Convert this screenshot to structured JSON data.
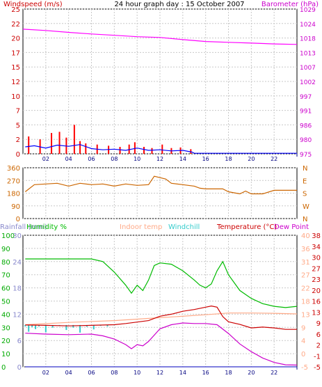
{
  "chart_data": [
    {
      "type": "line",
      "title": "24 hour graph day : 15 October 2007",
      "left_axis_label": "Windspeed (m/s)",
      "right_axis_label": "Barometer (hPa)",
      "x_ticks": [
        "02",
        "04",
        "06",
        "08",
        "10",
        "12",
        "14",
        "16",
        "18",
        "20",
        "22"
      ],
      "x_range": [
        0,
        24
      ],
      "ylim_left": [
        0,
        25
      ],
      "yticks_left": [
        0,
        2,
        5,
        7,
        10,
        12,
        15,
        17,
        20,
        22,
        25
      ],
      "yticks_right": [
        "975",
        "980",
        "986",
        "991",
        "997",
        "1002",
        "1007",
        "1013",
        "1018",
        "1024",
        "1029"
      ],
      "colors": {
        "wind_gust": "#ff0000",
        "wind_avg": "#0000ff",
        "barometer": "#ff00ff",
        "left_labels": "#cc0000",
        "right_labels": "#cc00cc"
      },
      "series": [
        {
          "name": "Barometer",
          "axis": "right",
          "x": [
            0,
            2,
            4,
            6,
            8,
            10,
            12,
            14,
            16,
            18,
            20,
            22,
            24
          ],
          "values": [
            1021.5,
            1021.0,
            1020.3,
            1019.7,
            1019.2,
            1018.7,
            1018.4,
            1017.6,
            1016.9,
            1016.6,
            1016.3,
            1016.0,
            1015.8
          ]
        },
        {
          "name": "Wind avg",
          "axis": "left",
          "x": [
            0.2,
            1,
            2,
            3,
            4,
            5,
            6,
            7,
            8,
            9,
            10,
            11,
            12,
            13,
            14,
            14.8,
            15,
            16,
            18,
            20,
            22,
            24
          ],
          "values": [
            1.2,
            1.4,
            1.0,
            1.5,
            1.3,
            1.6,
            0.9,
            0.7,
            0.8,
            0.6,
            1.0,
            0.6,
            0.7,
            0.5,
            0.6,
            0.3,
            0.1,
            0.1,
            0.1,
            0.1,
            0.1,
            0.1
          ]
        },
        {
          "name": "Wind gust",
          "axis": "left",
          "x": [
            0.5,
            1.5,
            2.5,
            3.2,
            3.8,
            4.5,
            5.0,
            5.5,
            6.5,
            7.5,
            8.5,
            9.3,
            9.8,
            10.6,
            11.3,
            12.2,
            13.0,
            13.8,
            14.7
          ],
          "values": [
            3.0,
            2.5,
            3.6,
            3.8,
            2.8,
            5.0,
            2.2,
            1.8,
            1.6,
            1.4,
            1.2,
            1.6,
            2.0,
            1.2,
            1.0,
            1.6,
            1.0,
            1.1,
            0.8
          ]
        }
      ]
    },
    {
      "type": "line",
      "left_axis_ticks": [
        "0",
        "90",
        "180",
        "270",
        "360"
      ],
      "right_axis_ticks": [
        "N",
        "W",
        "S",
        "E",
        "N"
      ],
      "ylim": [
        0,
        360
      ],
      "colors": {
        "direction": "#cc6600",
        "left_labels": "#cc6600",
        "right_labels": "#cc6600"
      },
      "series": [
        {
          "name": "Wind direction",
          "x": [
            0.2,
            1,
            2,
            3,
            4,
            5,
            6,
            7,
            8,
            9,
            10,
            11,
            11.5,
            12,
            12.5,
            13,
            14,
            15,
            15.5,
            16,
            17,
            17.5,
            18,
            19,
            19.5,
            20,
            21,
            22,
            23,
            24
          ],
          "values": [
            190,
            240,
            245,
            250,
            230,
            250,
            240,
            245,
            230,
            245,
            235,
            240,
            300,
            290,
            280,
            250,
            240,
            230,
            215,
            210,
            210,
            210,
            190,
            175,
            195,
            175,
            175,
            200,
            200,
            200
          ]
        }
      ]
    },
    {
      "type": "line",
      "legend": [
        "Rainfall (mm)",
        "Humidity %",
        "Indoor temp",
        "Windchill",
        "Temperature (°C)",
        "Dew Point"
      ],
      "legend_colors": [
        "#8888cc",
        "#00bb00",
        "#ffaa88",
        "#33cccc",
        "#cc0000",
        "#cc00cc"
      ],
      "rain_ticks": [
        "0",
        "6",
        "12",
        "18",
        "24",
        "30"
      ],
      "humidity_ticks": [
        "0",
        "10",
        "20",
        "30",
        "40",
        "50",
        "60",
        "70",
        "80",
        "90",
        "100"
      ],
      "indoor_ticks": [
        "-5",
        "0",
        "4",
        "9",
        "13",
        "18",
        "22",
        "27",
        "31",
        "36",
        "40"
      ],
      "temp_ticks": [
        "-5",
        "-1",
        "2",
        "6",
        "9",
        "13",
        "16",
        "20",
        "23",
        "27",
        "30",
        "34",
        "38"
      ],
      "temp_range": [
        -5,
        40
      ],
      "series": [
        {
          "name": "Humidity %",
          "axis": "humidity",
          "x": [
            0.2,
            2,
            4,
            6,
            7,
            8,
            9,
            9.5,
            10,
            10.5,
            11,
            11.5,
            12,
            13,
            14,
            15,
            15.5,
            16,
            16.5,
            17,
            17.5,
            18,
            19,
            20,
            21,
            22,
            23,
            24
          ],
          "values": [
            82,
            82,
            82,
            82,
            80,
            72,
            62,
            56,
            62,
            58,
            66,
            77,
            79,
            78,
            73,
            66,
            62,
            60,
            63,
            73,
            80,
            70,
            58,
            52,
            48,
            46,
            45,
            46
          ]
        },
        {
          "name": "Indoor temp",
          "axis": "temp",
          "x": [
            0.2,
            4,
            8,
            12,
            16,
            18,
            20,
            22,
            24
          ],
          "values": [
            9.4,
            10.2,
            10.8,
            11.8,
            12.8,
            13.4,
            13.4,
            13.3,
            13.1
          ]
        },
        {
          "name": "Temperature (°C)",
          "axis": "temp",
          "x": [
            0.2,
            2,
            4,
            6,
            8,
            9,
            10,
            11,
            12,
            13,
            14,
            15,
            16,
            16.5,
            17,
            17.5,
            18,
            19,
            20,
            21,
            22,
            23,
            24
          ],
          "values": [
            9.3,
            9.2,
            9.0,
            9.2,
            9.4,
            9.8,
            10.3,
            10.8,
            12.3,
            13.0,
            14.0,
            14.6,
            15.4,
            15.8,
            15.4,
            12.2,
            10.4,
            9.5,
            8.3,
            8.6,
            8.3,
            7.8,
            7.8
          ]
        },
        {
          "name": "Dew Point",
          "axis": "temp",
          "x": [
            0.2,
            2,
            4,
            6,
            7,
            8,
            9,
            9.5,
            10,
            10.5,
            11,
            12,
            13,
            14,
            15,
            16,
            17,
            18,
            19,
            20,
            21,
            22,
            23,
            24
          ],
          "values": [
            6.5,
            6.2,
            6.0,
            6.2,
            5.6,
            4.5,
            2.6,
            1.2,
            2.6,
            2.2,
            3.7,
            8.0,
            9.4,
            10.0,
            9.8,
            9.8,
            9.4,
            6.4,
            2.8,
            0.2,
            -2.0,
            -3.5,
            -4.3,
            -4.4
          ]
        },
        {
          "name": "Windchill",
          "axis": "temp",
          "x": [
            0.2,
            0.5,
            0.8,
            1.1,
            1.4,
            2.0,
            2.6,
            3.2,
            3.8,
            4.4,
            5.0,
            5.6,
            6.2,
            6.8,
            7.4,
            8.0
          ],
          "values": [
            8.8,
            7.0,
            8.6,
            7.9,
            8.8,
            6.8,
            8.4,
            9.0,
            7.6,
            8.4,
            6.7,
            8.7,
            7.8,
            9.0,
            8.8,
            9.2
          ]
        },
        {
          "name": "Rainfall (mm)",
          "axis": "rain",
          "x": [
            0.2,
            24
          ],
          "values": [
            0,
            0
          ]
        }
      ]
    }
  ]
}
